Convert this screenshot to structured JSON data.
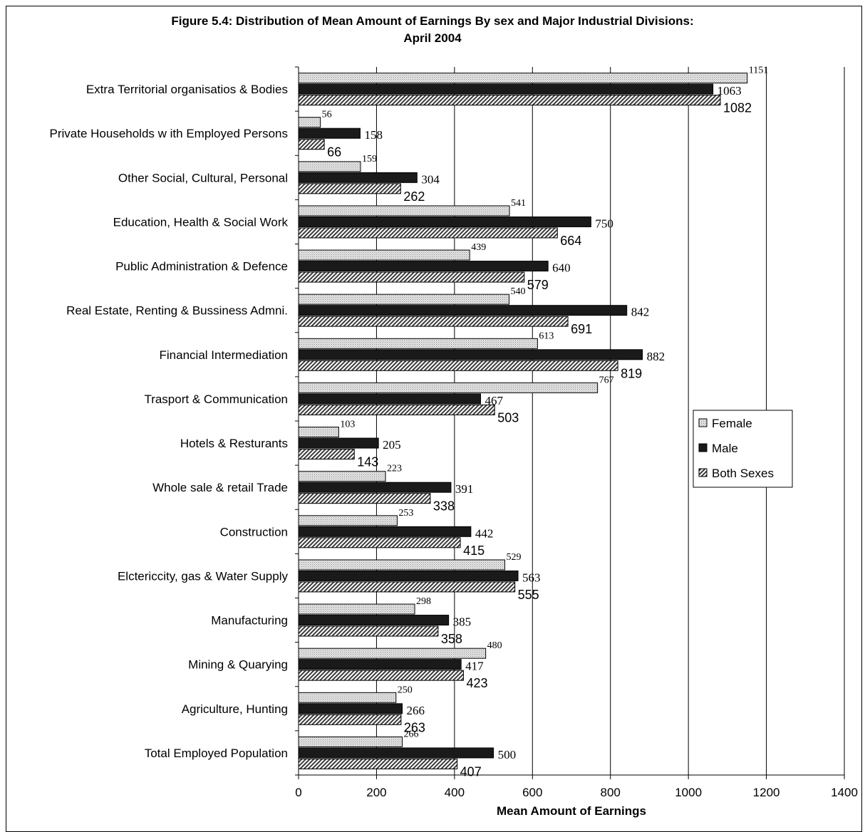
{
  "chart_data": {
    "type": "bar",
    "orientation": "horizontal",
    "title_line1": "Figure 5.4: Distribution of Mean Amount of Earnings By sex and Major Industrial Divisions:",
    "title_line2": "April 2004",
    "xlabel": "Mean Amount of Earnings",
    "ylabel": "",
    "xlim": [
      0,
      1400
    ],
    "xticks": [
      0,
      200,
      400,
      600,
      800,
      1000,
      1200,
      1400
    ],
    "grid": "vertical",
    "legend_position": "right",
    "categories": [
      "Extra Territorial organisatios & Bodies",
      "Private Households w ith Employed Persons",
      "Other Social, Cultural, Personal",
      "Education, Health & Social Work",
      "Public Administration & Defence",
      "Real Estate, Renting & Bussiness Admni.",
      "Financial Intermediation",
      "Trasport & Communication",
      "Hotels & Resturants",
      "Whole sale & retail Trade",
      "Construction",
      "Elctericcity, gas & Water Supply",
      "Manufacturing",
      "Mining & Quarying",
      "Agriculture, Hunting",
      "Total Employed Population"
    ],
    "series": [
      {
        "name": "Female",
        "color": "#d9d9d9",
        "pattern": "dots",
        "values": [
          1151,
          56,
          159,
          541,
          439,
          540,
          613,
          767,
          103,
          223,
          253,
          529,
          298,
          480,
          250,
          266
        ],
        "labels": [
          "1151",
          "56",
          "159",
          "541",
          "439",
          "540",
          "613",
          "767",
          "103",
          "223",
          "253",
          "529",
          "298",
          "480",
          "250",
          "266"
        ]
      },
      {
        "name": "Male",
        "color": "#1a1a1a",
        "pattern": "solid",
        "values": [
          1063,
          158,
          304,
          750,
          640,
          842,
          882,
          467,
          205,
          391,
          442,
          563,
          385,
          417,
          266,
          500
        ],
        "labels": [
          "1063",
          "158",
          "304",
          "750",
          "640",
          "842",
          "882",
          "467",
          "205",
          "391",
          "442",
          "563",
          "385",
          "417",
          "266",
          "500"
        ]
      },
      {
        "name": "Both Sexes",
        "color": "#ffffff",
        "pattern": "diagonal-hatch",
        "values": [
          1082,
          66,
          262,
          664,
          579,
          691,
          819,
          503,
          143,
          338,
          415,
          555,
          358,
          423,
          263,
          407
        ],
        "labels": [
          "1082",
          "66",
          "262",
          "664",
          "579",
          "691",
          "819",
          "503",
          "143",
          "338",
          "415",
          "555",
          "358",
          "423",
          "263",
          "407"
        ]
      }
    ]
  }
}
